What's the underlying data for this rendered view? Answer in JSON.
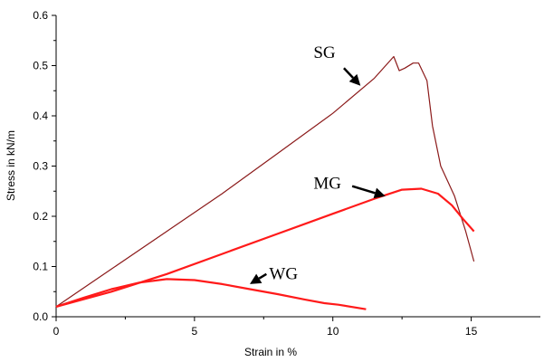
{
  "chart_data": {
    "type": "line",
    "title": "",
    "xlabel": "Strain in %",
    "ylabel": "Stress in kN/m",
    "xlim": [
      0,
      17.5
    ],
    "ylim": [
      0,
      0.6
    ],
    "x_ticks": [
      0,
      5,
      10,
      15
    ],
    "x_tick_labels": [
      "0",
      "5",
      "10",
      "15"
    ],
    "y_ticks": [
      0,
      0.1,
      0.2,
      0.3,
      0.4,
      0.5,
      0.6
    ],
    "y_tick_labels": [
      "0.0",
      "0.1",
      "0.2",
      "0.3",
      "0.4",
      "0.5",
      "0.6"
    ],
    "grid": false,
    "legend": "none",
    "series": [
      {
        "name": "SG",
        "color": "#8b1a1a",
        "points": [
          [
            0,
            0.02
          ],
          [
            2,
            0.095
          ],
          [
            4,
            0.17
          ],
          [
            6,
            0.245
          ],
          [
            8,
            0.325
          ],
          [
            10,
            0.405
          ],
          [
            11.5,
            0.475
          ],
          [
            12.2,
            0.518
          ],
          [
            12.4,
            0.49
          ],
          [
            12.6,
            0.495
          ],
          [
            12.9,
            0.505
          ],
          [
            13.1,
            0.505
          ],
          [
            13.4,
            0.47
          ],
          [
            13.6,
            0.38
          ],
          [
            13.9,
            0.3
          ],
          [
            14.4,
            0.24
          ],
          [
            14.8,
            0.17
          ],
          [
            15.1,
            0.11
          ]
        ]
      },
      {
        "name": "MG",
        "color": "#ff1a1a",
        "points": [
          [
            0,
            0.02
          ],
          [
            2,
            0.05
          ],
          [
            4,
            0.085
          ],
          [
            6,
            0.125
          ],
          [
            8,
            0.165
          ],
          [
            10,
            0.205
          ],
          [
            11.5,
            0.235
          ],
          [
            12.5,
            0.253
          ],
          [
            13.2,
            0.255
          ],
          [
            13.8,
            0.245
          ],
          [
            14.3,
            0.222
          ],
          [
            14.7,
            0.195
          ],
          [
            15.1,
            0.17
          ]
        ]
      },
      {
        "name": "WG",
        "color": "#ff1a1a",
        "points": [
          [
            0,
            0.02
          ],
          [
            1,
            0.038
          ],
          [
            2,
            0.055
          ],
          [
            3,
            0.068
          ],
          [
            4,
            0.075
          ],
          [
            5,
            0.073
          ],
          [
            6,
            0.065
          ],
          [
            7,
            0.055
          ],
          [
            8,
            0.045
          ],
          [
            9,
            0.034
          ],
          [
            9.7,
            0.027
          ],
          [
            10.2,
            0.024
          ],
          [
            11.2,
            0.015
          ]
        ]
      }
    ],
    "annotations": [
      {
        "text": "SG",
        "x": 9.3,
        "y": 0.515,
        "arrow_from": [
          10.4,
          0.495
        ],
        "arrow_to": [
          11.0,
          0.46
        ]
      },
      {
        "text": "MG",
        "x": 9.3,
        "y": 0.255,
        "arrow_from": [
          10.7,
          0.26
        ],
        "arrow_to": [
          11.9,
          0.24
        ]
      },
      {
        "text": "WG",
        "x": 7.7,
        "y": 0.075,
        "arrow_from": [
          7.6,
          0.085
        ],
        "arrow_to": [
          7.0,
          0.065
        ]
      }
    ]
  }
}
